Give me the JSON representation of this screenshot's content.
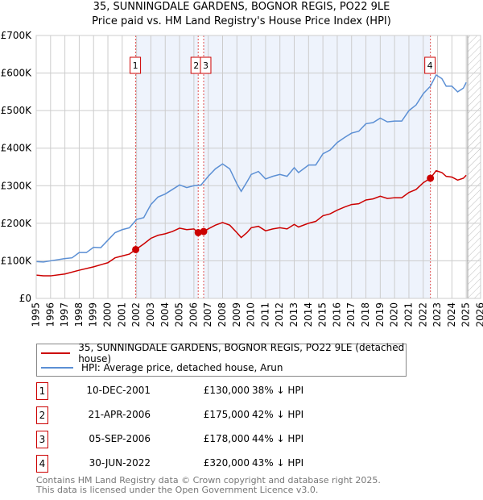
{
  "title_line1": "35, SUNNINGDALE GARDENS, BOGNOR REGIS, PO22 9LE",
  "title_line2": "Price paid vs. HM Land Registry's House Price Index (HPI)",
  "chart_data": {
    "type": "line",
    "title": "35, SUNNINGDALE GARDENS, BOGNOR REGIS, PO22 9LE — Price paid vs. HM Land Registry's House Price Index (HPI)",
    "xlim": [
      1995,
      2026
    ],
    "ylim": [
      0,
      700000
    ],
    "x_ticks": [
      "1995",
      "1996",
      "1997",
      "1998",
      "1999",
      "2000",
      "2001",
      "2002",
      "2003",
      "2004",
      "2005",
      "2006",
      "2007",
      "2008",
      "2009",
      "2010",
      "2011",
      "2012",
      "2013",
      "2014",
      "2015",
      "2016",
      "2017",
      "2018",
      "2019",
      "2020",
      "2021",
      "2022",
      "2023",
      "2024",
      "2025",
      "2026"
    ],
    "y_ticks": [
      {
        "v": 0,
        "label": "£0"
      },
      {
        "v": 100000,
        "label": "£100K"
      },
      {
        "v": 200000,
        "label": "£200K"
      },
      {
        "v": 300000,
        "label": "£300K"
      },
      {
        "v": 400000,
        "label": "£400K"
      },
      {
        "v": 500000,
        "label": "£500K"
      },
      {
        "v": 600000,
        "label": "£600K"
      },
      {
        "v": 700000,
        "label": "£700K"
      }
    ],
    "grid": true,
    "hatch_from": 2025.1,
    "series": [
      {
        "name": "35, SUNNINGDALE GARDENS, BOGNOR REGIS, PO22 9LE (detached house)",
        "color": "#cc0000",
        "x": [
          1995,
          1995.5,
          1996,
          1997,
          1998,
          1999,
          2000,
          2000.5,
          2001,
          2001.5,
          2001.94,
          2002.5,
          2003,
          2003.5,
          2004,
          2004.5,
          2005,
          2005.5,
          2006,
          2006.3,
          2006.68,
          2007,
          2007.5,
          2008,
          2008.5,
          2009,
          2009.3,
          2009.7,
          2010,
          2010.5,
          2011,
          2011.5,
          2012,
          2012.5,
          2013,
          2013.3,
          2014,
          2014.5,
          2015,
          2015.5,
          2016,
          2016.5,
          2017,
          2017.5,
          2018,
          2018.5,
          2019,
          2019.5,
          2020,
          2020.5,
          2021,
          2021.5,
          2022,
          2022.5,
          2022.9,
          2023.3,
          2023.6,
          2024,
          2024.4,
          2024.8,
          2025
        ],
        "y": [
          62000,
          60000,
          60000,
          65000,
          75000,
          84000,
          95000,
          108000,
          113000,
          118000,
          130000,
          145000,
          160000,
          168000,
          172000,
          178000,
          187000,
          183000,
          185000,
          175000,
          178000,
          185000,
          195000,
          202000,
          195000,
          175000,
          162000,
          175000,
          188000,
          192000,
          180000,
          185000,
          188000,
          185000,
          197000,
          190000,
          200000,
          205000,
          220000,
          225000,
          235000,
          243000,
          250000,
          252000,
          262000,
          265000,
          272000,
          266000,
          268000,
          268000,
          282000,
          290000,
          308000,
          320000,
          340000,
          335000,
          325000,
          323000,
          315000,
          320000,
          328000
        ]
      },
      {
        "name": "HPI: Average price, detached house, Arun",
        "color": "#5b8fd4",
        "x": [
          1995,
          1995.5,
          1996,
          1997,
          1997.5,
          1998,
          1998.5,
          1999,
          1999.5,
          2000,
          2000.5,
          2001,
          2001.5,
          2002,
          2002.5,
          2003,
          2003.5,
          2004,
          2004.5,
          2005,
          2005.5,
          2006,
          2006.5,
          2007,
          2007.5,
          2008,
          2008.5,
          2009,
          2009.3,
          2009.7,
          2010,
          2010.5,
          2011,
          2011.5,
          2012,
          2012.5,
          2013,
          2013.3,
          2014,
          2014.5,
          2015,
          2015.5,
          2016,
          2016.5,
          2017,
          2017.5,
          2018,
          2018.5,
          2019,
          2019.5,
          2020,
          2020.5,
          2021,
          2021.5,
          2022,
          2022.5,
          2022.9,
          2023.3,
          2023.6,
          2024,
          2024.4,
          2024.8,
          2025
        ],
        "y": [
          98000,
          97000,
          100000,
          106000,
          108000,
          122000,
          122000,
          136000,
          135000,
          155000,
          175000,
          183000,
          188000,
          210000,
          215000,
          250000,
          270000,
          278000,
          290000,
          302000,
          295000,
          300000,
          302000,
          325000,
          345000,
          358000,
          345000,
          305000,
          285000,
          310000,
          330000,
          338000,
          318000,
          325000,
          330000,
          325000,
          348000,
          335000,
          355000,
          355000,
          385000,
          395000,
          415000,
          428000,
          440000,
          445000,
          465000,
          468000,
          480000,
          470000,
          472000,
          472000,
          500000,
          515000,
          545000,
          565000,
          595000,
          585000,
          565000,
          565000,
          550000,
          560000,
          575000
        ]
      }
    ],
    "sales": [
      {
        "label": "1",
        "x": 2001.94,
        "date": "10-DEC-2001",
        "value": 130000,
        "price": "£130,000",
        "hpi": "38% ↓ HPI"
      },
      {
        "label": "2",
        "x": 2006.3,
        "date": "21-APR-2006",
        "value": 175000,
        "price": "£175,000",
        "hpi": "42% ↓ HPI"
      },
      {
        "label": "3",
        "x": 2006.68,
        "date": "05-SEP-2006",
        "value": 178000,
        "price": "£178,000",
        "hpi": "44% ↓ HPI"
      },
      {
        "label": "4",
        "x": 2022.5,
        "date": "30-JUN-2022",
        "value": 320000,
        "price": "£320,000",
        "hpi": "43% ↓ HPI"
      }
    ]
  },
  "legend": {
    "red": "35, SUNNINGDALE GARDENS, BOGNOR REGIS, PO22 9LE (detached house)",
    "blue": "HPI: Average price, detached house, Arun"
  },
  "footer": {
    "line1": "Contains HM Land Registry data © Crown copyright and database right 2025.",
    "line2": "This data is licensed under the Open Government Licence v3.0."
  }
}
